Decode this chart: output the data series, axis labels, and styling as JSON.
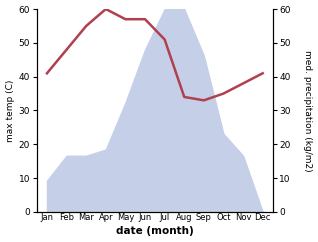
{
  "months": [
    "Jan",
    "Feb",
    "Mar",
    "Apr",
    "May",
    "Jun",
    "Jul",
    "Aug",
    "Sep",
    "Oct",
    "Nov",
    "Dec"
  ],
  "temperature": [
    41,
    48,
    55,
    60,
    57,
    57,
    51,
    34,
    33,
    35,
    38,
    41
  ],
  "precipitation": [
    10,
    18,
    18,
    20,
    35,
    52,
    65,
    65,
    50,
    25,
    18,
    0
  ],
  "temp_color": "#b04050",
  "precip_color": "#c5d0e8",
  "ylim_left": [
    0,
    60
  ],
  "ylim_right": [
    0,
    60
  ],
  "yticks_left": [
    0,
    10,
    20,
    30,
    40,
    50,
    60
  ],
  "yticks_right": [
    0,
    10,
    20,
    30,
    40,
    50,
    60
  ],
  "xlabel": "date (month)",
  "ylabel_left": "max temp (C)",
  "ylabel_right": "med. precipitation (kg/m2)",
  "bg_color": "#ffffff",
  "line_width": 1.8
}
